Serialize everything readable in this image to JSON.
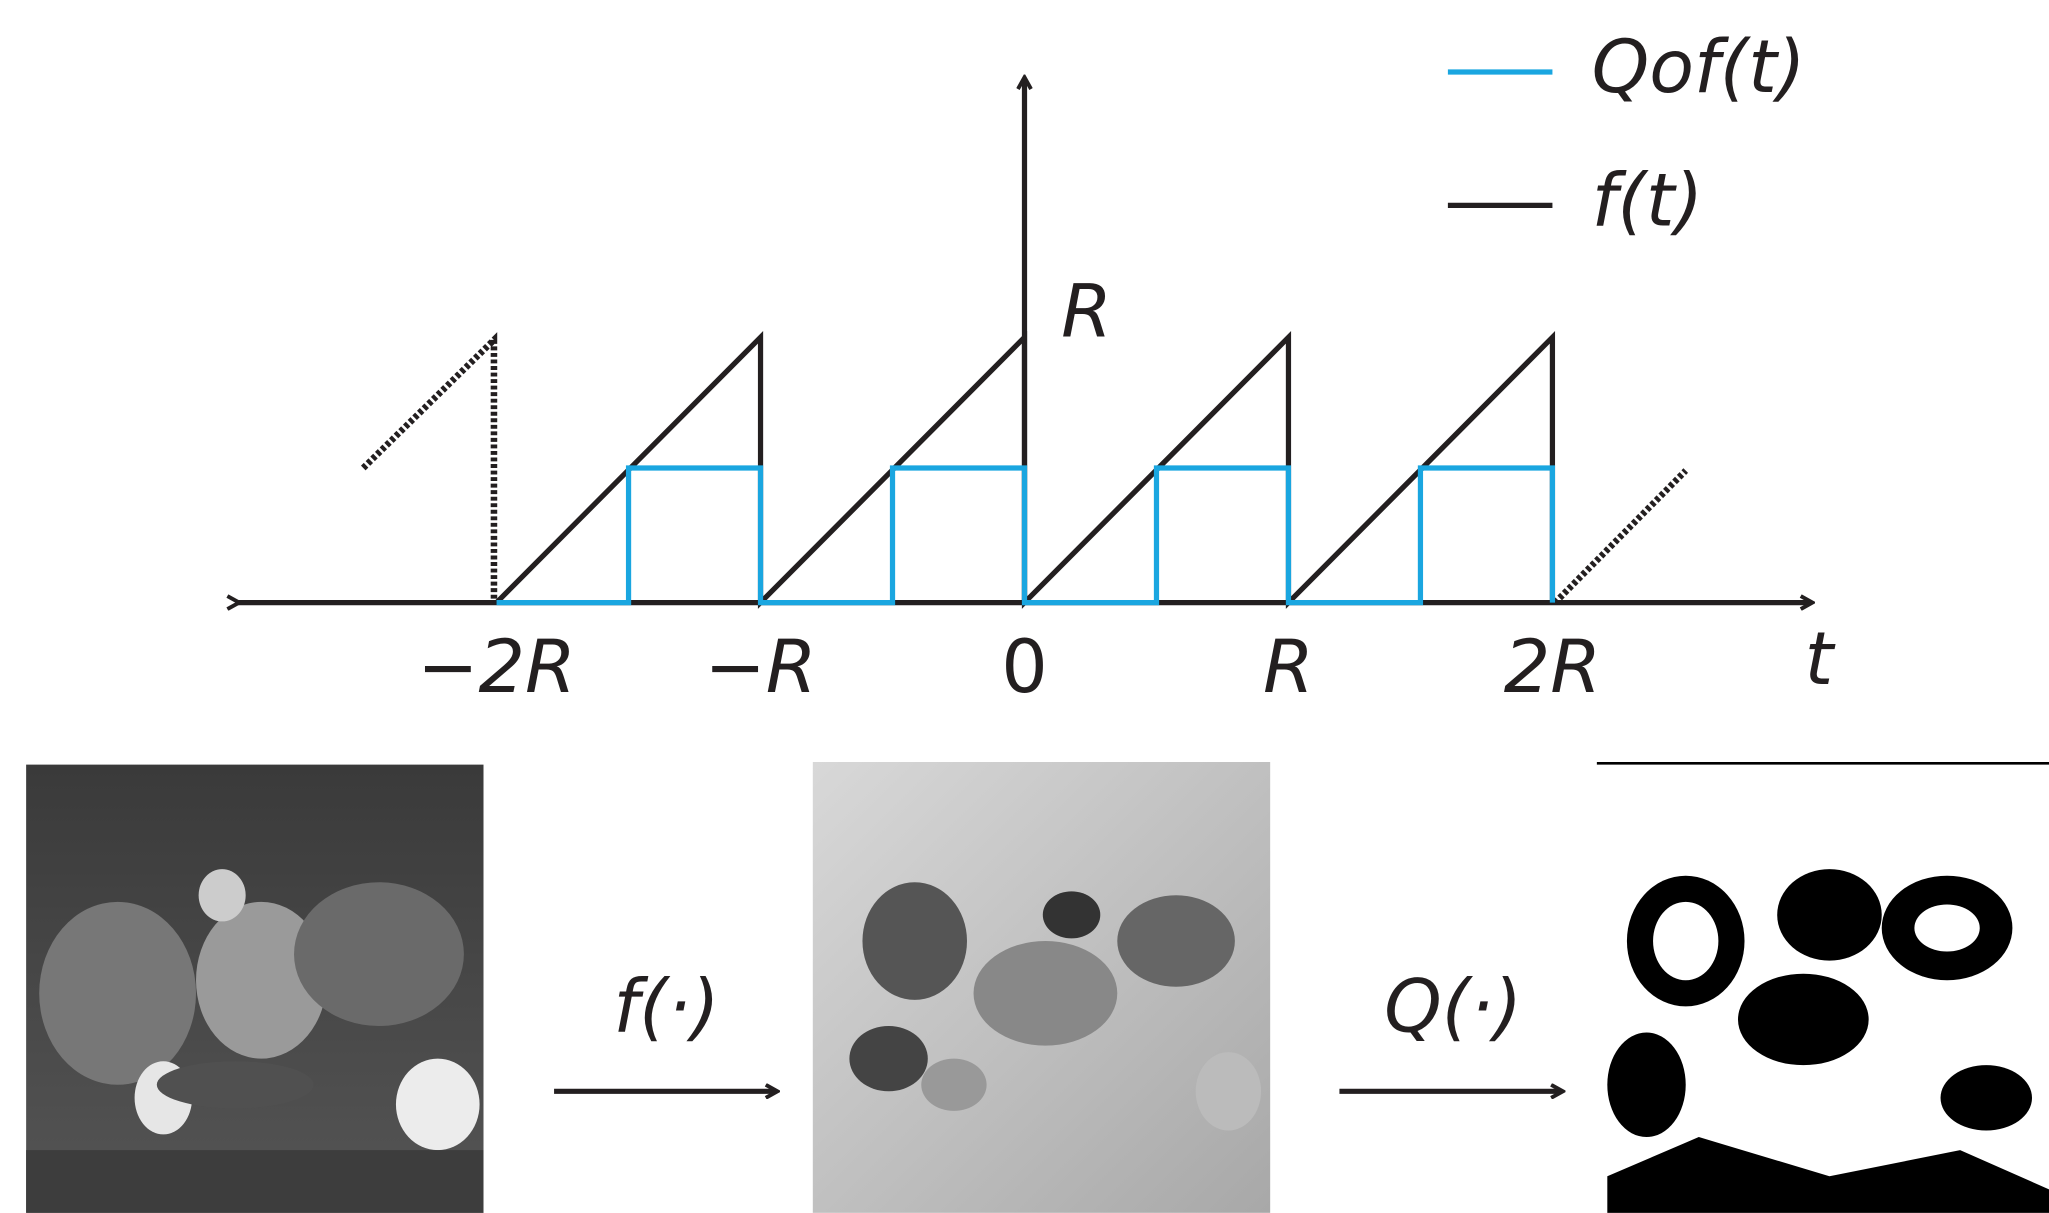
{
  "legend": {
    "items": [
      {
        "label": "Qof(t)"
      },
      {
        "label": "f(t)"
      }
    ]
  },
  "plot": {
    "x_labels": [
      "−2R",
      "−R",
      "0",
      "R",
      "2R"
    ],
    "x_axis_label": "t",
    "y_label": "R"
  },
  "pipeline": {
    "steps": [
      {
        "label": "f(·)"
      },
      {
        "label": "Q(·)"
      }
    ]
  }
}
